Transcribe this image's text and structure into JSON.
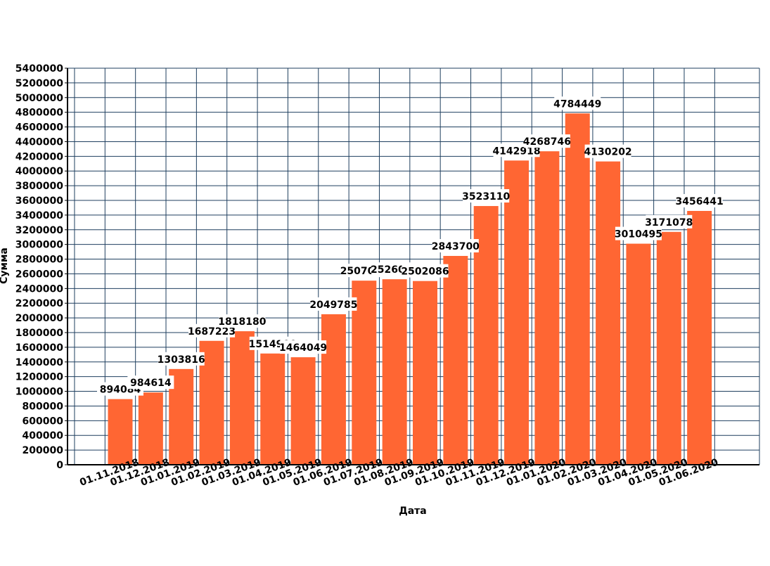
{
  "chart_data": {
    "type": "bar",
    "xlabel": "Дата",
    "ylabel": "Сумма",
    "ylim": [
      0,
      5400000
    ],
    "ytick_step": 200000,
    "grid": true,
    "categories": [
      "01.11.2018",
      "01.12.2018",
      "01.01.2019",
      "01.02.2019",
      "01.03.2019",
      "01.04.2019",
      "01.05.2019",
      "01.06.2019",
      "01.07.2019",
      "01.08.2019",
      "01.09.2019",
      "01.10.2019",
      "01.11.2019",
      "01.12.2019",
      "01.01.2020",
      "01.02.2020",
      "01.03.2020",
      "01.04.2020",
      "01.05.2020",
      "01.06.2020"
    ],
    "values": [
      894084,
      984614,
      1303816,
      1687223,
      1818180,
      1514900,
      1464049,
      2049785,
      2507000,
      2526000,
      2502086,
      2843700,
      3523110,
      4142918,
      4268746,
      4784449,
      4130202,
      3010495,
      3171078,
      3456441
    ],
    "data_labels": [
      "894084",
      "984614",
      "1303816",
      "1687223",
      "1818180",
      "1514900",
      "1464049",
      "2049785",
      "2507000",
      "2526000",
      "2502086",
      "2843700",
      "3523110",
      "4142918",
      "4268746",
      "4784449",
      "4130202",
      "3010495",
      "3171078",
      "3456441"
    ],
    "colors": {
      "bar": "#ff6633",
      "grid": "#1f3f5f",
      "axis": "#000000"
    }
  }
}
